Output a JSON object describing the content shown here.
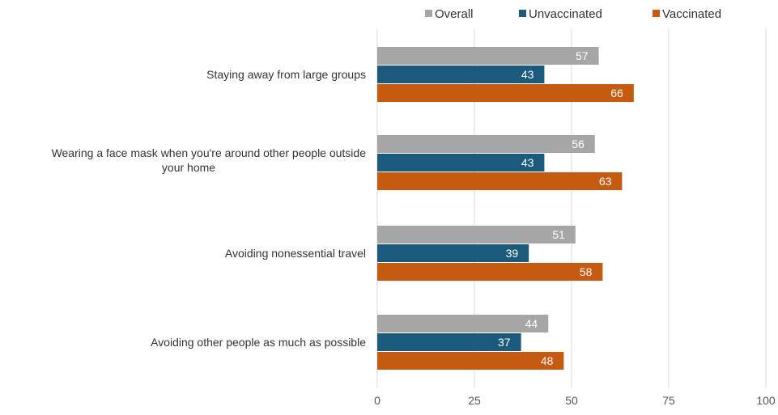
{
  "chart_data": {
    "type": "bar",
    "orientation": "horizontal",
    "title": "",
    "xlabel": "",
    "ylabel": "",
    "categories": [
      [
        "Staying away from large groups"
      ],
      [
        "Wearing a face mask when you're around other people outside",
        "your home"
      ],
      [
        "Avoiding nonessential travel"
      ],
      [
        "Avoiding other people as much as possible"
      ]
    ],
    "series": [
      {
        "name": "Overall",
        "color": "#a6a6a6",
        "values": [
          57,
          56,
          51,
          44
        ]
      },
      {
        "name": "Unvaccinated",
        "color": "#1c5a7d",
        "values": [
          43,
          43,
          39,
          37
        ]
      },
      {
        "name": "Vaccinated",
        "color": "#c55a11",
        "values": [
          66,
          63,
          58,
          48
        ]
      }
    ],
    "xlim": [
      0,
      100
    ],
    "xticks": [
      0,
      25,
      50,
      75,
      100
    ],
    "grid": true,
    "legend_position": "top-right",
    "data_labels": true
  }
}
